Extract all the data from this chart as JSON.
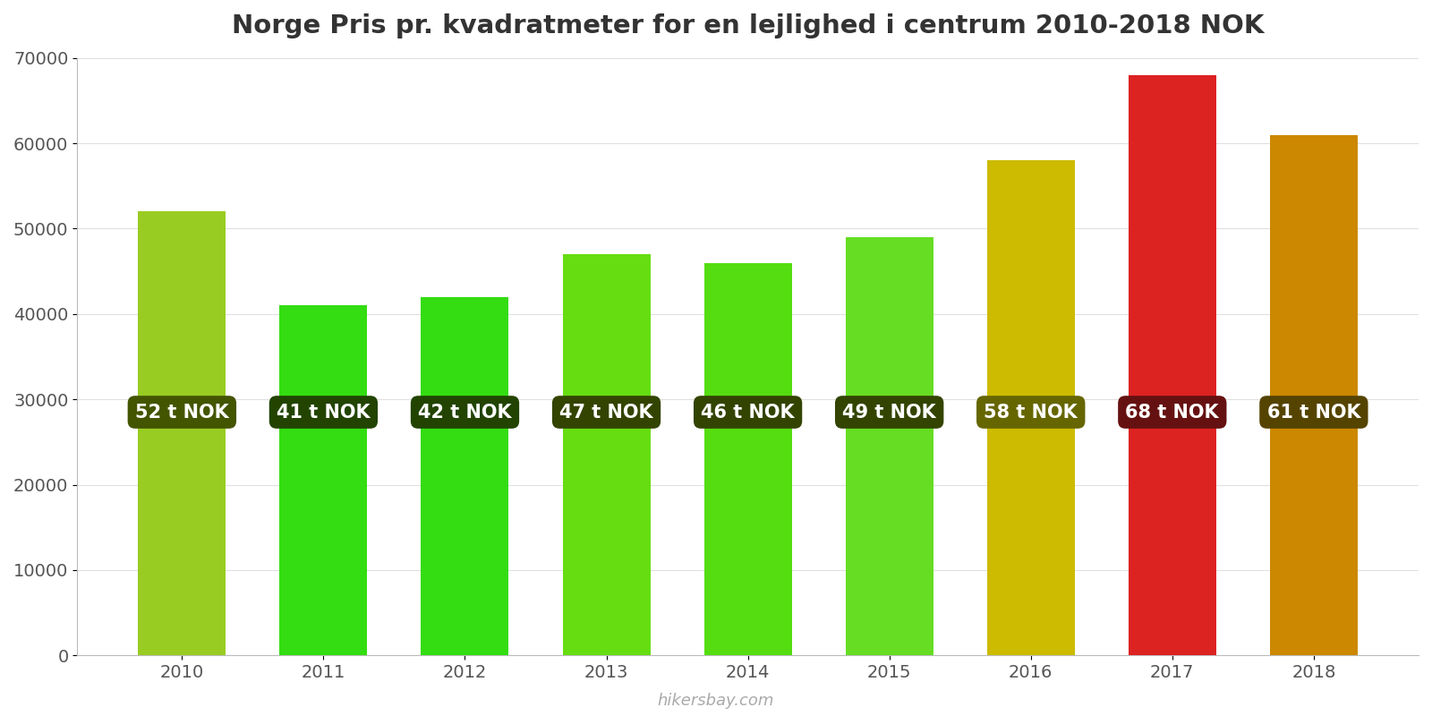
{
  "title": "Norge Pris pr. kvadratmeter for en lejlighed i centrum 2010-2018 NOK",
  "years": [
    2010,
    2011,
    2012,
    2013,
    2014,
    2015,
    2016,
    2017,
    2018
  ],
  "values": [
    52000,
    41000,
    42000,
    47000,
    46000,
    49000,
    58000,
    68000,
    61000
  ],
  "labels": [
    "52 t NOK",
    "41 t NOK",
    "42 t NOK",
    "47 t NOK",
    "46 t NOK",
    "49 t NOK",
    "58 t NOK",
    "68 t NOK",
    "61 t NOK"
  ],
  "bar_colors": [
    "#99cc22",
    "#33dd11",
    "#33dd11",
    "#66dd11",
    "#55dd11",
    "#66dd22",
    "#ccbb00",
    "#dd2222",
    "#cc8800"
  ],
  "label_bg_colors": [
    "#445500",
    "#224400",
    "#224400",
    "#334400",
    "#334400",
    "#334400",
    "#666600",
    "#661111",
    "#554400"
  ],
  "ylim": [
    0,
    70000
  ],
  "yticks": [
    0,
    10000,
    20000,
    30000,
    40000,
    50000,
    60000,
    70000
  ],
  "label_text_color": "#ffffff",
  "label_fontsize": 15,
  "title_fontsize": 21,
  "tick_fontsize": 14,
  "watermark": "hikersbay.com",
  "background_color": "#ffffff",
  "grid_color": "#e0e0e0"
}
